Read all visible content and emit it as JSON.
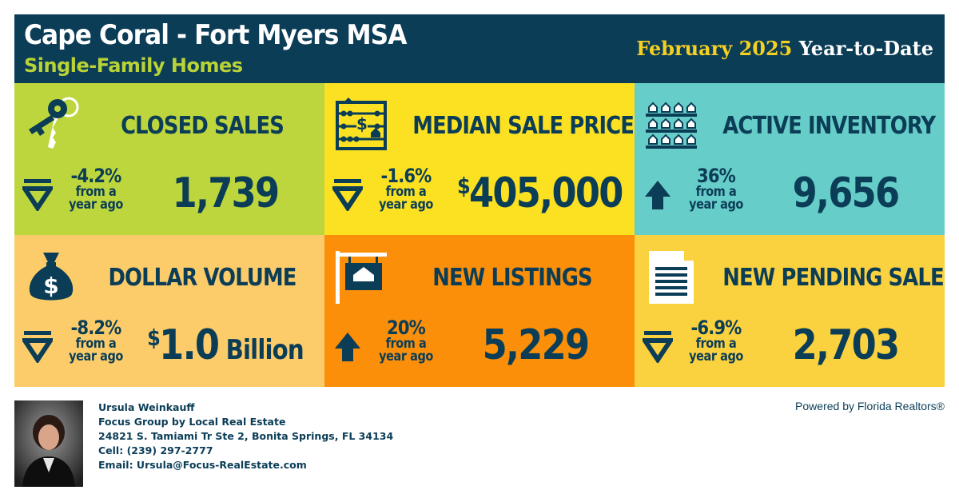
{
  "header": {
    "title": "Cape Coral - Fort Myers MSA",
    "subtitle": "Single-Family Homes",
    "period_highlight": "February 2025",
    "period_rest": " Year-to-Date"
  },
  "colors": {
    "navy": "#0b3d57",
    "lime": "#bdd63d",
    "yellow": "#fbe122",
    "teal": "#66cdc8",
    "light_orange": "#fccc6a",
    "orange": "#fb8f0a",
    "gold": "#fad13f"
  },
  "tiles": [
    {
      "label": "CLOSED SALES",
      "icon": "keys-icon",
      "direction": "down",
      "pct": "-4.2%",
      "from": "from a",
      "ago": "year ago",
      "value_prefix": "",
      "value": "1,739",
      "value_suffix": ""
    },
    {
      "label": "MEDIAN SALE PRICE",
      "icon": "abacus-icon",
      "direction": "down",
      "pct": "-1.6%",
      "from": "from a",
      "ago": "year ago",
      "value_prefix": "$",
      "value": "405,000",
      "value_suffix": ""
    },
    {
      "label": "ACTIVE INVENTORY",
      "icon": "houses-shelf-icon",
      "direction": "up",
      "pct": "36%",
      "from": "from a",
      "ago": "year ago",
      "value_prefix": "",
      "value": "9,656",
      "value_suffix": ""
    },
    {
      "label": "DOLLAR VOLUME",
      "icon": "money-bag-icon",
      "direction": "down",
      "pct": "-8.2%",
      "from": "from a",
      "ago": "year ago",
      "value_prefix": "$",
      "value": "1.0",
      "value_suffix": " Billion"
    },
    {
      "label": "NEW LISTINGS",
      "icon": "for-sale-sign-icon",
      "direction": "up",
      "pct": "20%",
      "from": "from a",
      "ago": "year ago",
      "value_prefix": "",
      "value": "5,229",
      "value_suffix": ""
    },
    {
      "label": "NEW PENDING SALES",
      "icon": "document-icon",
      "direction": "down",
      "pct": "-6.9%",
      "from": "from a",
      "ago": "year ago",
      "value_prefix": "",
      "value": "2,703",
      "value_suffix": ""
    }
  ],
  "agent": {
    "name": "Ursula Weinkauff",
    "company": "Focus Group by Local Real Estate",
    "address": "24821 S. Tamiami Tr Ste 2, Bonita Springs, FL 34134",
    "cell": "Cell: (239) 297-2777",
    "email": "Email: Ursula@Focus-RealEstate.com"
  },
  "powered_by": "Powered by Florida Realtors®"
}
